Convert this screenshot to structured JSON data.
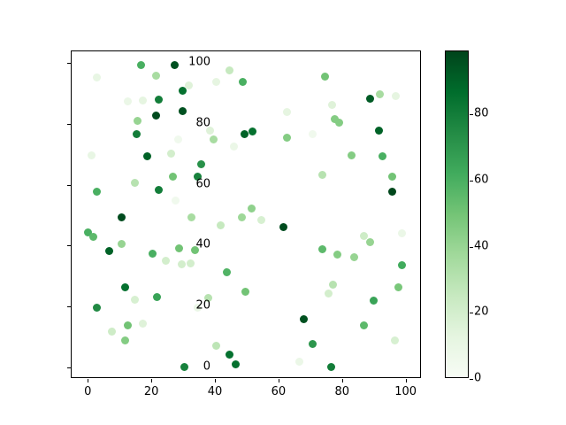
{
  "chart_data": {
    "type": "scatter",
    "title": "",
    "xlabel": "",
    "ylabel": "",
    "xlim": [
      -5.1,
      105.1
    ],
    "ylim": [
      -3.7,
      103.7
    ],
    "x_ticks": [
      0,
      20,
      40,
      60,
      80,
      100
    ],
    "y_ticks": [
      0,
      20,
      40,
      60,
      80,
      100
    ],
    "grid": false,
    "marker_diameter_px": 9,
    "colormap": "Greens",
    "colormap_anchors": [
      [
        0.0,
        "#f7fcf5"
      ],
      [
        0.125,
        "#e5f5e0"
      ],
      [
        0.25,
        "#c7e9c0"
      ],
      [
        0.375,
        "#a1d99b"
      ],
      [
        0.5,
        "#74c476"
      ],
      [
        0.625,
        "#41ab5d"
      ],
      [
        0.75,
        "#238b45"
      ],
      [
        0.875,
        "#006d2c"
      ],
      [
        1.0,
        "#00441b"
      ]
    ],
    "colorbar": {
      "position": "right",
      "vmin": 0,
      "vmax": 99,
      "ticks": [
        0,
        20,
        40,
        60,
        80
      ]
    },
    "points_format": [
      "x",
      "y",
      "color_value"
    ],
    "points": [
      [
        16.7,
        99.1,
        60
      ],
      [
        27.4,
        99.1,
        95
      ],
      [
        21.6,
        95.7,
        35
      ],
      [
        2.9,
        95.2,
        10
      ],
      [
        31.8,
        92.6,
        15
      ],
      [
        29.8,
        90.7,
        85
      ],
      [
        12.6,
        87.4,
        8
      ],
      [
        17.4,
        87.6,
        12
      ],
      [
        22.2,
        87.8,
        80
      ],
      [
        29.8,
        84.0,
        95
      ],
      [
        21.6,
        82.7,
        97
      ],
      [
        15.6,
        80.8,
        40
      ],
      [
        15.3,
        76.6,
        80
      ],
      [
        28.4,
        74.9,
        5
      ],
      [
        1.1,
        69.5,
        10
      ],
      [
        18.7,
        69.3,
        90
      ],
      [
        26.3,
        70.2,
        20
      ],
      [
        44.7,
        97.4,
        25
      ],
      [
        48.8,
        93.7,
        60
      ],
      [
        40.5,
        93.7,
        12
      ],
      [
        62.6,
        83.7,
        12
      ],
      [
        38.5,
        77.6,
        15
      ],
      [
        39.6,
        74.7,
        35
      ],
      [
        49.2,
        76.6,
        90
      ],
      [
        51.7,
        77.3,
        85
      ],
      [
        46.0,
        72.4,
        8
      ],
      [
        62.6,
        75.4,
        45
      ],
      [
        74.7,
        95.5,
        50
      ],
      [
        88.7,
        88.1,
        92
      ],
      [
        91.9,
        89.6,
        35
      ],
      [
        96.9,
        88.9,
        12
      ],
      [
        76.8,
        86.0,
        15
      ],
      [
        77.7,
        81.5,
        45
      ],
      [
        79.0,
        80.3,
        45
      ],
      [
        91.7,
        77.6,
        90
      ],
      [
        70.6,
        76.6,
        5
      ],
      [
        83.0,
        69.5,
        45
      ],
      [
        92.8,
        69.3,
        60
      ],
      [
        2.8,
        57.6,
        60
      ],
      [
        14.7,
        60.5,
        30
      ],
      [
        22.4,
        58.2,
        80
      ],
      [
        26.8,
        62.6,
        50
      ],
      [
        27.5,
        54.8,
        5
      ],
      [
        10.6,
        49.4,
        97
      ],
      [
        0.0,
        44.3,
        60
      ],
      [
        1.8,
        43.0,
        55
      ],
      [
        10.5,
        40.6,
        40
      ],
      [
        6.6,
        38.2,
        90
      ],
      [
        20.4,
        37.3,
        60
      ],
      [
        28.6,
        39.2,
        50
      ],
      [
        24.5,
        35.0,
        20
      ],
      [
        35.6,
        66.8,
        72
      ],
      [
        34.6,
        62.6,
        78
      ],
      [
        51.5,
        52.1,
        42
      ],
      [
        32.6,
        49.2,
        35
      ],
      [
        48.6,
        49.2,
        38
      ],
      [
        54.7,
        48.5,
        18
      ],
      [
        41.9,
        46.8,
        25
      ],
      [
        61.6,
        46.0,
        97
      ],
      [
        33.7,
        38.5,
        50
      ],
      [
        29.5,
        33.8,
        20
      ],
      [
        32.3,
        34.3,
        20
      ],
      [
        73.8,
        63.1,
        30
      ],
      [
        95.8,
        62.6,
        50
      ],
      [
        95.8,
        57.6,
        98
      ],
      [
        98.8,
        44.0,
        8
      ],
      [
        86.8,
        43.3,
        22
      ],
      [
        88.7,
        41.1,
        40
      ],
      [
        73.8,
        38.9,
        55
      ],
      [
        78.4,
        37.2,
        45
      ],
      [
        83.9,
        36.2,
        40
      ],
      [
        98.8,
        33.5,
        62
      ],
      [
        11.7,
        26.3,
        85
      ],
      [
        14.7,
        22.3,
        18
      ],
      [
        21.7,
        23.2,
        65
      ],
      [
        2.8,
        19.8,
        75
      ],
      [
        7.5,
        11.8,
        22
      ],
      [
        12.6,
        14.0,
        50
      ],
      [
        17.4,
        14.4,
        15
      ],
      [
        11.7,
        9.0,
        45
      ],
      [
        30.3,
        0.3,
        78
      ],
      [
        43.8,
        31.2,
        58
      ],
      [
        49.5,
        24.8,
        50
      ],
      [
        37.8,
        23.0,
        30
      ],
      [
        34.6,
        19.8,
        8
      ],
      [
        40.5,
        7.1,
        28
      ],
      [
        44.7,
        4.4,
        85
      ],
      [
        46.5,
        1.2,
        85
      ],
      [
        66.5,
        2.0,
        8
      ],
      [
        77.0,
        27.1,
        30
      ],
      [
        75.8,
        24.2,
        20
      ],
      [
        97.8,
        26.2,
        48
      ],
      [
        89.9,
        22.1,
        65
      ],
      [
        67.9,
        15.9,
        95
      ],
      [
        86.8,
        13.9,
        55
      ],
      [
        70.6,
        7.8,
        70
      ],
      [
        96.7,
        8.8,
        18
      ],
      [
        76.6,
        0.3,
        80
      ]
    ]
  }
}
